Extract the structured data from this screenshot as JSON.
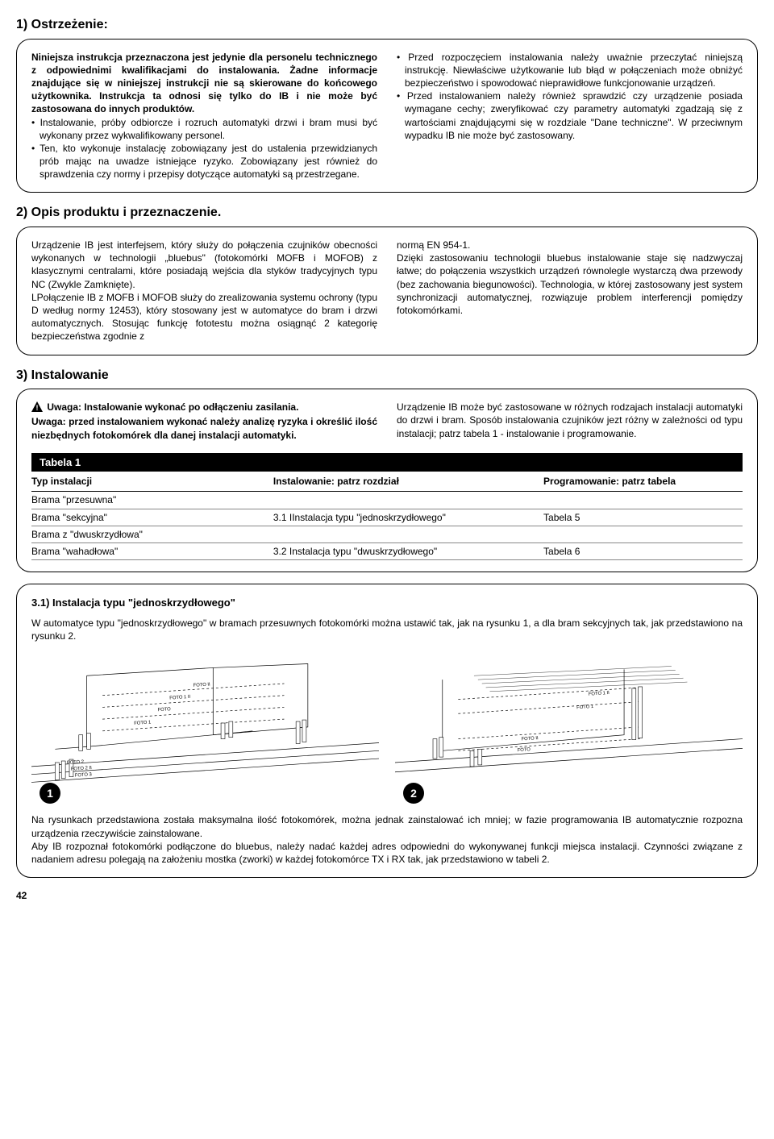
{
  "section1": {
    "title": "1) Ostrzeżenie:",
    "left_intro": "Niniejsza instrukcja przeznaczona jest jedynie dla personelu technicznego z odpowiednimi kwalifikacjami do instalowania. Żadne informacje znajdujące się w niniejszej instrukcji nie są skierowane do końcowego użytkownika. Instrukcja ta odnosi się tylko do IB i nie może być zastosowana do innych produktów.",
    "left_bullets": [
      "Instalowanie, próby odbiorcze i rozruch automatyki drzwi i bram musi być wykonany przez wykwalifikowany personel.",
      "Ten, kto wykonuje instalację zobowiązany jest do ustalenia przewidzianych prób mając na uwadze istniejące ryzyko. Zobowiązany jest również do sprawdzenia czy normy i przepisy dotyczące automatyki są przestrzegane."
    ],
    "right_bullets": [
      "Przed rozpoczęciem instalowania należy uważnie przeczytać niniejszą instrukcję. Niewłaściwe użytkowanie lub błąd w połączeniach może obniżyć bezpieczeństwo i spowodować nieprawidłowe funkcjonowanie urządzeń.",
      "Przed instalowaniem należy również sprawdzić czy urządzenie posiada wymagane cechy; zweryfikować czy parametry automatyki zgadzają się z wartościami znajdującymi się w rozdziale \"Dane techniczne\". W przeciwnym wypadku IB nie może być zastosowany."
    ]
  },
  "section2": {
    "title": "2) Opis produktu i przeznaczenie.",
    "left": "Urządzenie IB jest interfejsem, który służy do połączenia czujników obecności wykonanych w technologii „bluebus\" (fotokomórki MOFB i MOFOB) z klasycznymi centralami, które posiadają wejścia dla styków tradycyjnych typu NC (Zwykle Zamknięte).\nLPołączenie IB z MOFB i MOFOB służy do zrealizowania systemu ochrony (typu D według normy 12453), który stosowany jest w automatyce do bram i drzwi automatycznych. Stosując funkcję fototestu można osiągnąć 2 kategorię bezpieczeństwa zgodnie z",
    "right": "normą EN 954-1.\nDzięki zastosowaniu technologii bluebus instalowanie staje się nadzwyczaj łatwe; do połączenia wszystkich urządzeń równolegle wystarczą dwa przewody (bez zachowania biegunowości). Technologia, w której zastosowany jest system synchronizacji automatycznej, rozwiązuje problem interferencji pomiędzy fotokomórkami."
  },
  "section3": {
    "title": "3) Instalowanie",
    "left_bold_line1": "Uwaga: Instalowanie wykonać po odłączeniu zasilania.",
    "left_bold_rest": "Uwaga: przed instalowaniem wykonać należy analizę ryzyka i określić ilość niezbędnych fotokomórek dla danej instalacji automatyki.",
    "right": "Urządzenie IB może być zastosowane w różnych rodzajach instalacji automatyki do drzwi i bram. Sposób instalowania czujników jezt różny w zależności od typu instalacji; patrz tabela 1 - instalowanie i programowanie.",
    "table": {
      "header": "Tabela 1",
      "columns": [
        "Typ instalacji",
        "Instalowanie: patrz rozdział",
        "Programowanie: patrz tabela"
      ],
      "rows": [
        [
          "Brama \"przesuwna\"",
          "",
          ""
        ],
        [
          "Brama \"sekcyjna\"",
          "3.1 IInstalacja typu \"jednoskrzydłowego\"",
          "Tabela 5"
        ],
        [
          "Brama z \"dwuskrzydłowa\"",
          "",
          ""
        ],
        [
          "Brama \"wahadłowa\"",
          "3.2 Instalacja typu \"dwuskrzydłowego\"",
          "Tabela 6"
        ]
      ]
    }
  },
  "section31": {
    "title": "3.1) Instalacja typu \"jednoskrzydłowego\"",
    "intro": "W automatyce typu \"jednoskrzydłowego\" w bramach przesuwnych fotokomórki można ustawić tak, jak na rysunku 1, a dla bram sekcyjnych tak, jak przedstawiono na rysunku 2.",
    "diagram1_labels": [
      "FOTO II",
      "FOTO 1 II",
      "FOTO",
      "FOTO 1",
      "FOTO 2",
      "FOTO 2 II",
      "FOTO 3"
    ],
    "diagram2_labels": [
      "FOTO 1 II",
      "FOTO 1",
      "FOTO II",
      "FOTO"
    ],
    "num1": "1",
    "num2": "2",
    "footer": "Na rysunkach przedstawiona została maksymalna ilość fotokomórek, można jednak zainstalować ich mniej; w fazie programowania IB automatycznie rozpozna urządzenia rzeczywiście zainstalowane.\nAby IB rozpoznał fotokomórki podłączone do bluebus, należy nadać każdej adres odpowiedni do wykonywanej funkcji miejsca instalacji. Czynności związane z nadaniem adresu polegają na założeniu mostka (zworki) w każdej fotokomórce TX i RX tak, jak przedstawiono w tabeli 2."
  },
  "page_number": "42"
}
